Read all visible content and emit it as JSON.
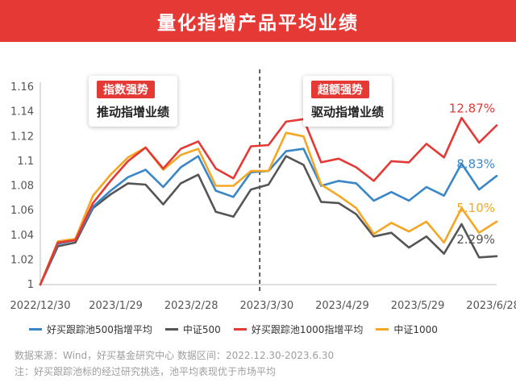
{
  "banner": {
    "title": "量化指增产品平均业绩"
  },
  "phases": [
    {
      "tag": "指数强势",
      "desc": "推动指增业绩"
    },
    {
      "tag": "超额强势",
      "desc": "驱动指增业绩"
    }
  ],
  "colors": {
    "banner": "#e53935",
    "s500": "#3a87c8",
    "csi500": "#555555",
    "s1000": "#e53935",
    "csi1000": "#f5a623"
  },
  "chart_data": {
    "type": "line",
    "title": "",
    "xlabel": "",
    "ylabel": "",
    "ylim": [
      1.0,
      1.16
    ],
    "yticks": [
      "1",
      "1.02",
      "1.04",
      "1.06",
      "1.08",
      "1.1",
      "1.12",
      "1.14",
      "1.16"
    ],
    "xticks": [
      "2022/12/30",
      "2023/1/29",
      "2023/2/28",
      "2023/3/30",
      "2023/4/29",
      "2023/5/29",
      "2023/6/28"
    ],
    "x": [
      "2022/12/30",
      "2023/1/6",
      "2023/1/13",
      "2023/1/20",
      "2023/1/27",
      "2023/2/3",
      "2023/2/10",
      "2023/2/17",
      "2023/2/24",
      "2023/3/3",
      "2023/3/10",
      "2023/3/17",
      "2023/3/24",
      "2023/3/31",
      "2023/4/7",
      "2023/4/14",
      "2023/4/21",
      "2023/4/28",
      "2023/5/5",
      "2023/5/12",
      "2023/5/19",
      "2023/5/26",
      "2023/6/2",
      "2023/6/9",
      "2023/6/16",
      "2023/6/23",
      "2023/6/30"
    ],
    "divider_after": "2023/3/24",
    "series": [
      {
        "name": "好买跟踪池500指增平均",
        "color_key": "s500",
        "end_label": "8.83%",
        "values": [
          1.0,
          1.033,
          1.036,
          1.063,
          1.076,
          1.087,
          1.093,
          1.079,
          1.095,
          1.104,
          1.076,
          1.071,
          1.091,
          1.092,
          1.108,
          1.11,
          1.08,
          1.084,
          1.082,
          1.068,
          1.075,
          1.068,
          1.079,
          1.072,
          1.098,
          1.077,
          1.088
        ]
      },
      {
        "name": "中证500",
        "color_key": "csi500",
        "end_label": "2.29%",
        "values": [
          1.0,
          1.031,
          1.034,
          1.062,
          1.073,
          1.082,
          1.081,
          1.065,
          1.082,
          1.089,
          1.059,
          1.055,
          1.077,
          1.081,
          1.104,
          1.097,
          1.067,
          1.066,
          1.057,
          1.039,
          1.042,
          1.03,
          1.039,
          1.025,
          1.049,
          1.022,
          1.023
        ]
      },
      {
        "name": "好买跟踪池1000指增平均",
        "color_key": "s1000",
        "end_label": "12.87%",
        "values": [
          1.0,
          1.034,
          1.036,
          1.066,
          1.084,
          1.1,
          1.111,
          1.094,
          1.11,
          1.116,
          1.094,
          1.086,
          1.112,
          1.113,
          1.132,
          1.134,
          1.099,
          1.102,
          1.095,
          1.084,
          1.1,
          1.099,
          1.114,
          1.103,
          1.135,
          1.115,
          1.129
        ]
      },
      {
        "name": "中证1000",
        "color_key": "csi1000",
        "end_label": "5.10%",
        "values": [
          1.0,
          1.035,
          1.037,
          1.072,
          1.089,
          1.103,
          1.111,
          1.093,
          1.105,
          1.11,
          1.08,
          1.08,
          1.092,
          1.092,
          1.123,
          1.12,
          1.081,
          1.072,
          1.062,
          1.041,
          1.05,
          1.043,
          1.051,
          1.034,
          1.062,
          1.042,
          1.051
        ]
      }
    ]
  },
  "legend": [
    {
      "label": "好买跟踪池500指增平均",
      "color_key": "s500"
    },
    {
      "label": "中证500",
      "color_key": "csi500"
    },
    {
      "label": "好买跟踪池1000指增平均",
      "color_key": "s1000"
    },
    {
      "label": "中证1000",
      "color_key": "csi1000"
    }
  ],
  "footnotes": {
    "source": "数据来源：Wind，好买基金研究中心  数据区间：2022.12.30-2023.6.30",
    "note": "注：好买跟踪池标的经过研究挑选，池平均表现优于市场平均"
  }
}
